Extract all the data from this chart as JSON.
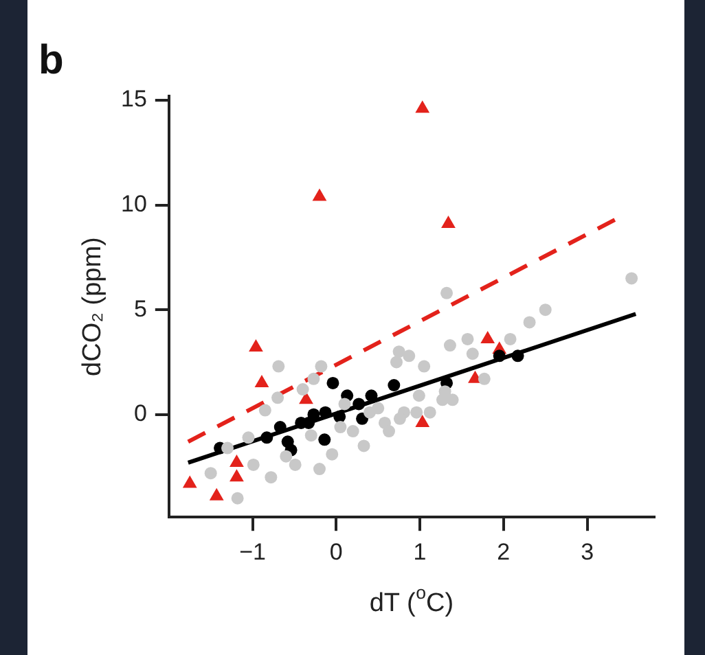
{
  "chart_data": {
    "type": "scatter",
    "title": "b",
    "xlabel": "dT ($^{o}$C)",
    "ylabel": "dCO₂ (ppm)",
    "xlim": [
      -2,
      3.8
    ],
    "ylim": [
      -4.9,
      15.2
    ],
    "xticks": [
      {
        "value": -1,
        "label": "−1"
      },
      0,
      1,
      2,
      3
    ],
    "yticks": [
      0,
      5,
      10,
      15
    ],
    "grid": false,
    "legend": false,
    "series": [
      {
        "type": "scatter",
        "color": "#c8c8c8",
        "marker": "circle",
        "x": [
          -0.69,
          -0.18,
          0.87,
          0.75,
          1.05,
          -1.5,
          -1.18,
          -0.99,
          -0.78,
          -0.49,
          0.33,
          -0.05,
          -1.05,
          0.4,
          0.58,
          0.81,
          0.63,
          -0.27,
          -0.4,
          0.99,
          1.12,
          1.3,
          1.32,
          3.53,
          2.5,
          2.31,
          2.08,
          1.57,
          1.36,
          0.72,
          1.63,
          1.27,
          1.39,
          0.96,
          0.76,
          1.77,
          -0.6,
          -0.3,
          0.1,
          0.2,
          -0.85,
          -0.2,
          0.5,
          -1.3,
          0.05,
          -0.7
        ],
        "values": [
          2.3,
          2.3,
          2.8,
          3.0,
          2.3,
          -2.8,
          -4.0,
          -2.4,
          -3.0,
          -2.4,
          -1.5,
          -1.9,
          -1.1,
          0.1,
          -0.4,
          0.1,
          -0.8,
          1.7,
          1.2,
          0.9,
          0.1,
          1.1,
          5.8,
          6.5,
          5.0,
          4.4,
          3.6,
          3.6,
          3.3,
          2.5,
          2.9,
          0.7,
          0.7,
          0.1,
          -0.2,
          1.7,
          -2.0,
          -1.0,
          0.5,
          -0.8,
          0.2,
          -2.6,
          0.3,
          -1.6,
          -0.6,
          0.8
        ]
      },
      {
        "type": "scatter",
        "color": "#000000",
        "marker": "circle",
        "x": [
          -1.39,
          -0.83,
          -0.67,
          -0.58,
          -0.54,
          -0.42,
          -0.33,
          -0.27,
          -0.14,
          -0.13,
          -0.04,
          0.13,
          0.04,
          0.27,
          0.31,
          0.42,
          0.69,
          1.32,
          1.95,
          2.17
        ],
        "values": [
          -1.6,
          -1.1,
          -0.6,
          -1.3,
          -1.7,
          -0.4,
          -0.4,
          0.0,
          -1.2,
          0.1,
          1.5,
          0.9,
          -0.1,
          0.5,
          -0.2,
          0.9,
          1.4,
          1.5,
          2.8,
          2.8
        ]
      },
      {
        "type": "scatter",
        "color": "#e3221b",
        "marker": "triangle",
        "x": [
          1.03,
          -0.2,
          1.34,
          -0.96,
          -0.89,
          -0.36,
          1.03,
          -1.19,
          -1.19,
          -1.75,
          -1.43,
          1.66,
          1.81,
          1.95
        ],
        "values": [
          14.6,
          10.4,
          9.1,
          3.2,
          1.5,
          0.7,
          -0.4,
          -2.3,
          -3.0,
          -3.3,
          -3.9,
          1.7,
          3.6,
          3.1
        ]
      },
      {
        "type": "line",
        "color": "#000000",
        "line_style": "solid",
        "x": [
          -1.77,
          3.58
        ],
        "values": [
          -2.3,
          4.8
        ]
      },
      {
        "type": "line",
        "color": "#e3221b",
        "line_style": "dashed",
        "x": [
          -1.77,
          3.38
        ],
        "values": [
          -1.3,
          9.4
        ]
      }
    ]
  }
}
